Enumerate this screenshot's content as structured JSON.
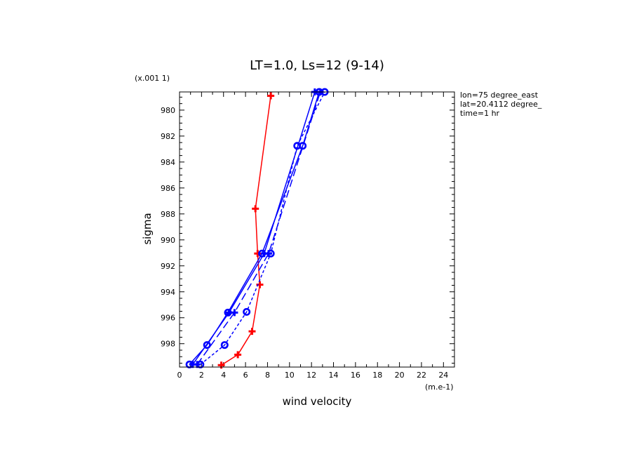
{
  "chart_data": {
    "type": "line",
    "title": "LT=1.0, Ls=12 (9-14)",
    "xlabel": "wind velocity",
    "ylabel": "sigma",
    "x_unit_label": "(m.e-1)",
    "y_unit_label": "(x.001 1)",
    "xlim": [
      0,
      25
    ],
    "ylim": [
      999.8,
      978.6
    ],
    "x_ticks": [
      0,
      2,
      4,
      6,
      8,
      10,
      12,
      14,
      16,
      18,
      20,
      22,
      24
    ],
    "y_ticks": [
      980,
      982,
      984,
      986,
      988,
      990,
      992,
      994,
      996,
      998
    ],
    "annotations": [
      "lon=75 degree_east",
      "lat=20.4112 degree_",
      "time=1 hr"
    ],
    "series": [
      {
        "color": "#ff0000",
        "dash": "solid",
        "marker": "plus",
        "points": [
          [
            3.8,
            999.65
          ],
          [
            5.3,
            998.85
          ],
          [
            6.6,
            997.05
          ],
          [
            7.3,
            993.45
          ],
          [
            7.1,
            991.05
          ],
          [
            6.9,
            987.6
          ],
          [
            8.3,
            978.9
          ]
        ]
      },
      {
        "color": "#0000ff",
        "dash": "solid",
        "marker": "circle",
        "points": [
          [
            0.9,
            999.6
          ],
          [
            2.5,
            998.1
          ],
          [
            4.4,
            995.6
          ],
          [
            7.5,
            991.05
          ],
          [
            11.2,
            982.75
          ],
          [
            12.7,
            978.6
          ]
        ]
      },
      {
        "color": "#0000ff",
        "dash": "dashed",
        "marker": "circle",
        "points": [
          [
            1.9,
            999.6
          ],
          [
            4.1,
            998.1
          ],
          [
            6.1,
            995.55
          ],
          [
            8.3,
            991.05
          ],
          [
            10.7,
            982.75
          ],
          [
            13.2,
            978.6
          ]
        ]
      },
      {
        "color": "#0000ff",
        "dash": "solid",
        "marker": "plus",
        "points": [
          [
            1.2,
            999.6
          ],
          [
            4.5,
            995.6
          ],
          [
            7.7,
            991.05
          ],
          [
            12.3,
            978.6
          ]
        ]
      },
      {
        "color": "#0000ff",
        "dash": "longdash",
        "marker": "plus",
        "points": [
          [
            1.6,
            999.6
          ],
          [
            5.0,
            995.6
          ],
          [
            8.1,
            991.05
          ],
          [
            12.8,
            978.6
          ]
        ]
      }
    ]
  }
}
